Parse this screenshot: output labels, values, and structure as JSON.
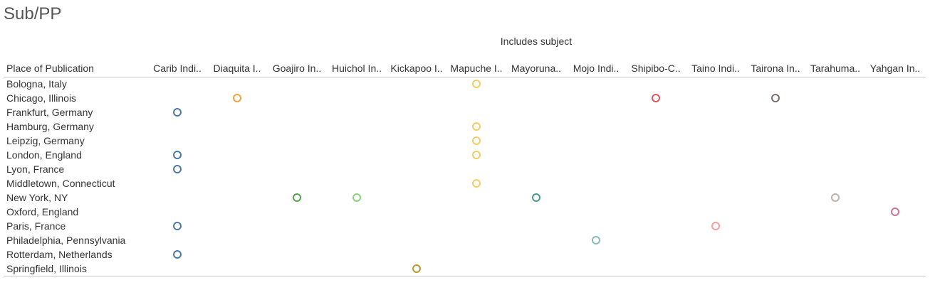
{
  "title": "Sub/PP",
  "chart_data": {
    "type": "scatter",
    "title": "Sub/PP",
    "column_axis_title": "Includes subject",
    "row_axis_title": "Place of Publication",
    "columns": [
      "Carib Indi..",
      "Diaquita I..",
      "Goajiro In..",
      "Huichol In..",
      "Kickapoo I..",
      "Mapuche I..",
      "Mayoruna..",
      "Mojo Indi..",
      "Shipibo-C..",
      "Taino Indi..",
      "Tairona In..",
      "Tarahuma..",
      "Yahgan In.."
    ],
    "rows": [
      "Bologna, Italy",
      "Chicago, Illinois",
      "Frankfurt, Germany",
      "Hamburg, Germany",
      "Leipzig, Germany",
      "London, England",
      "Lyon, France",
      "Middletown, Connecticut",
      "New York, NY",
      "Oxford, England",
      "Paris, France",
      "Philadelphia, Pennsylvania",
      "Rotterdam, Netherlands",
      "Springfield, Illinois"
    ],
    "column_colors": [
      "#4e79a7",
      "#f1a340",
      "#59a14f",
      "#8cd17d",
      "#b6992d",
      "#f1ce63",
      "#499894",
      "#86bcb6",
      "#e15759",
      "#ff9d9a",
      "#79706e",
      "#bab0ac",
      "#d37295"
    ],
    "points": [
      {
        "row": "Bologna, Italy",
        "column": "Mapuche I.."
      },
      {
        "row": "Chicago, Illinois",
        "column": "Diaquita I.."
      },
      {
        "row": "Chicago, Illinois",
        "column": "Shipibo-C.."
      },
      {
        "row": "Chicago, Illinois",
        "column": "Tairona In.."
      },
      {
        "row": "Frankfurt, Germany",
        "column": "Carib Indi.."
      },
      {
        "row": "Hamburg, Germany",
        "column": "Mapuche I.."
      },
      {
        "row": "Leipzig, Germany",
        "column": "Mapuche I.."
      },
      {
        "row": "London, England",
        "column": "Carib Indi.."
      },
      {
        "row": "London, England",
        "column": "Mapuche I.."
      },
      {
        "row": "Lyon, France",
        "column": "Carib Indi.."
      },
      {
        "row": "Middletown, Connecticut",
        "column": "Mapuche I.."
      },
      {
        "row": "New York, NY",
        "column": "Goajiro In.."
      },
      {
        "row": "New York, NY",
        "column": "Huichol In.."
      },
      {
        "row": "New York, NY",
        "column": "Mayoruna.."
      },
      {
        "row": "New York, NY",
        "column": "Tarahuma.."
      },
      {
        "row": "Oxford, England",
        "column": "Yahgan In.."
      },
      {
        "row": "Paris, France",
        "column": "Carib Indi.."
      },
      {
        "row": "Paris, France",
        "column": "Taino Indi.."
      },
      {
        "row": "Philadelphia, Pennsylvania",
        "column": "Mojo Indi.."
      },
      {
        "row": "Rotterdam, Netherlands",
        "column": "Carib Indi.."
      },
      {
        "row": "Springfield, Illinois",
        "column": "Kickapoo I.."
      }
    ]
  }
}
